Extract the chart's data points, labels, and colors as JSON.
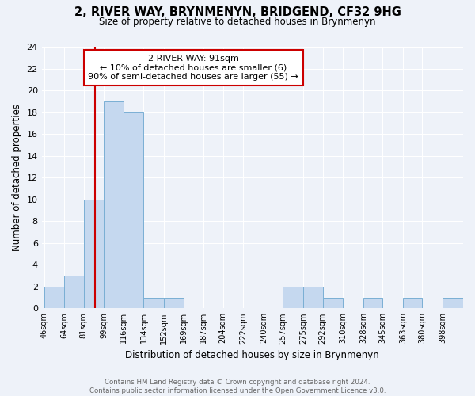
{
  "title": "2, RIVER WAY, BRYNMENYN, BRIDGEND, CF32 9HG",
  "subtitle": "Size of property relative to detached houses in Brynmenyn",
  "xlabel": "Distribution of detached houses by size in Brynmenyn",
  "ylabel": "Number of detached properties",
  "bin_labels": [
    "46sqm",
    "64sqm",
    "81sqm",
    "99sqm",
    "116sqm",
    "134sqm",
    "152sqm",
    "169sqm",
    "187sqm",
    "204sqm",
    "222sqm",
    "240sqm",
    "257sqm",
    "275sqm",
    "292sqm",
    "310sqm",
    "328sqm",
    "345sqm",
    "363sqm",
    "380sqm",
    "398sqm"
  ],
  "bin_edges": [
    46,
    64,
    81,
    99,
    116,
    134,
    152,
    169,
    187,
    204,
    222,
    240,
    257,
    275,
    292,
    310,
    328,
    345,
    363,
    380,
    398
  ],
  "counts": [
    2,
    3,
    10,
    19,
    18,
    1,
    1,
    0,
    0,
    0,
    0,
    0,
    2,
    2,
    1,
    0,
    1,
    0,
    1,
    0,
    1
  ],
  "bar_color": "#c5d8ef",
  "bar_edge_color": "#7aafd4",
  "vline_x": 91,
  "vline_color": "#cc0000",
  "annotation_line1": "2 RIVER WAY: 91sqm",
  "annotation_line2": "← 10% of detached houses are smaller (6)",
  "annotation_line3": "90% of semi-detached houses are larger (55) →",
  "annotation_box_color": "white",
  "annotation_box_edge_color": "#cc0000",
  "ylim": [
    0,
    24
  ],
  "yticks": [
    0,
    2,
    4,
    6,
    8,
    10,
    12,
    14,
    16,
    18,
    20,
    22,
    24
  ],
  "footer_text": "Contains HM Land Registry data © Crown copyright and database right 2024.\nContains public sector information licensed under the Open Government Licence v3.0.",
  "background_color": "#eef2f9"
}
